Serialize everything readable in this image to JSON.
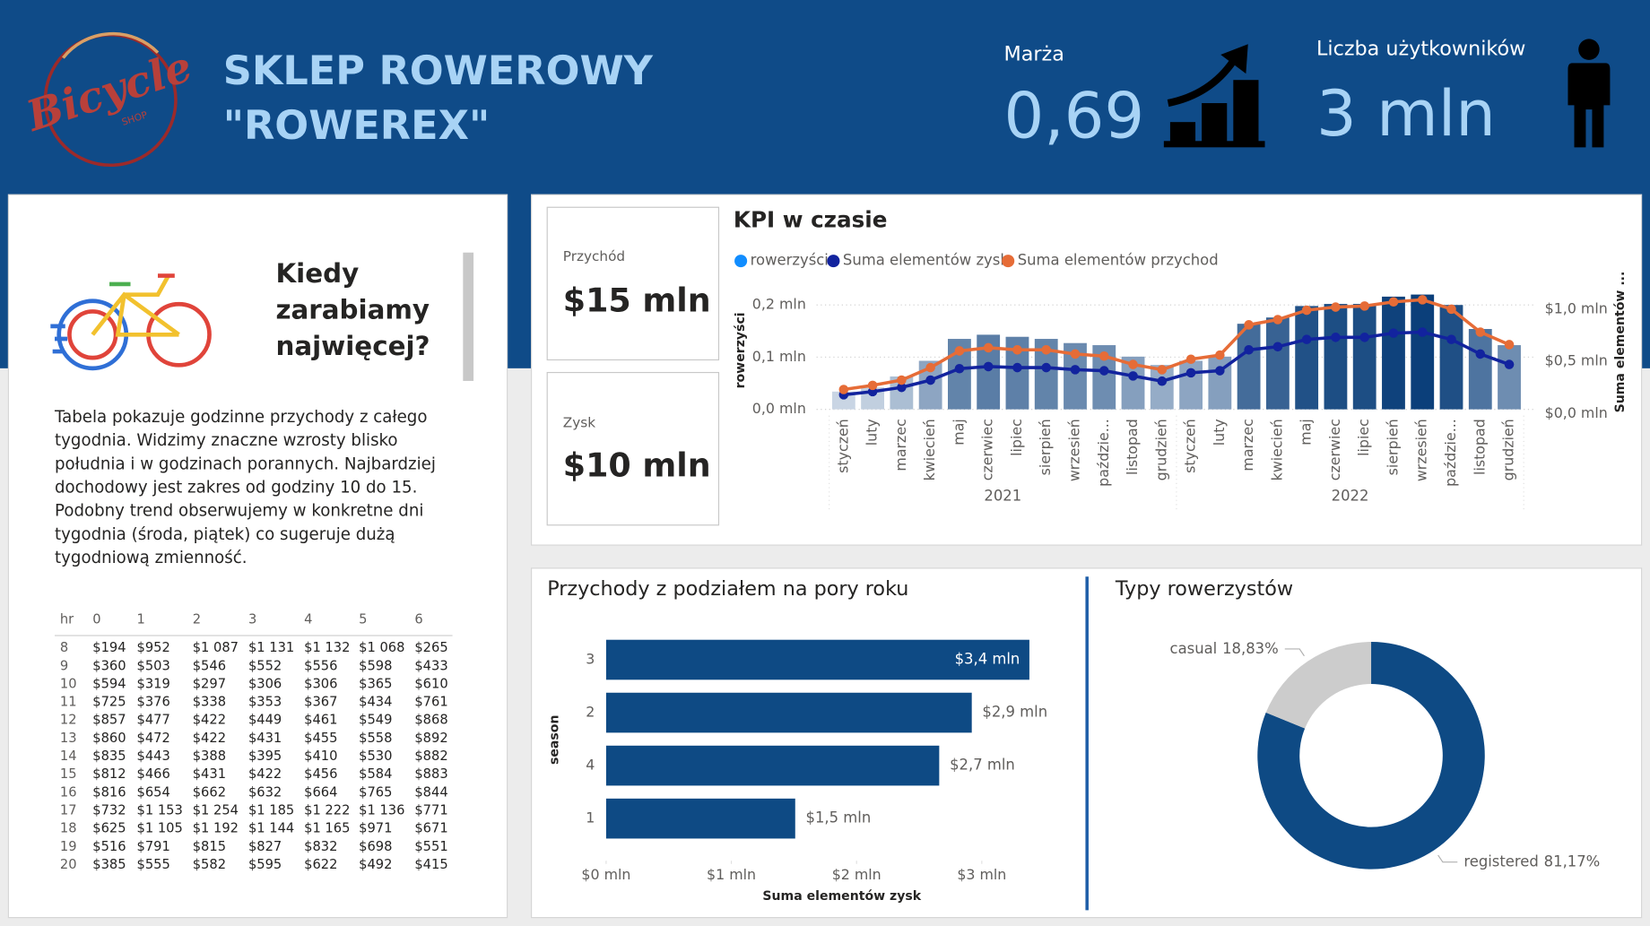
{
  "header": {
    "logo": "Bicycle",
    "logo_sub": "SHOP",
    "title": [
      "SKLEP ROWEROWY",
      "\"ROWEREX\""
    ],
    "kpis": [
      {
        "label": "Marża",
        "value": "0,69"
      },
      {
        "label": "Liczba użytkowników",
        "value": "3 mln"
      }
    ]
  },
  "info": {
    "heading": [
      "Kiedy",
      "zarabiamy",
      "najwięcej?"
    ],
    "text": [
      "Tabela pokazuje godzinne przychody z całego",
      "tygodnia. Widzimy znaczne wzrosty blisko",
      "południa i w godzinach porannych. Najbardziej",
      "dochodowy jest zakres od godziny 10 do 15.",
      "Podobny trend obserwujemy w konkretne dni",
      "tygodnia (środa, piątek) co sugeruje dużą",
      "tygodniową zmienność."
    ]
  },
  "table": {
    "columns": [
      "hr",
      "0",
      "1",
      "2",
      "3",
      "4",
      "5",
      "6"
    ],
    "rows": [
      [
        "8",
        "$194",
        "$952",
        "$1 087",
        "$1 131",
        "$1 132",
        "$1 068",
        "$265"
      ],
      [
        "9",
        "$360",
        "$503",
        "$546",
        "$552",
        "$556",
        "$598",
        "$433"
      ],
      [
        "10",
        "$594",
        "$319",
        "$297",
        "$306",
        "$306",
        "$365",
        "$610"
      ],
      [
        "11",
        "$725",
        "$376",
        "$338",
        "$353",
        "$367",
        "$434",
        "$761"
      ],
      [
        "12",
        "$857",
        "$477",
        "$422",
        "$449",
        "$461",
        "$549",
        "$868"
      ],
      [
        "13",
        "$860",
        "$472",
        "$422",
        "$431",
        "$455",
        "$558",
        "$892"
      ],
      [
        "14",
        "$835",
        "$443",
        "$388",
        "$395",
        "$410",
        "$530",
        "$882"
      ],
      [
        "15",
        "$812",
        "$466",
        "$431",
        "$422",
        "$456",
        "$584",
        "$883"
      ],
      [
        "16",
        "$816",
        "$654",
        "$662",
        "$632",
        "$664",
        "$765",
        "$844"
      ],
      [
        "17",
        "$732",
        "$1 153",
        "$1 254",
        "$1 185",
        "$1 222",
        "$1 136",
        "$771"
      ],
      [
        "18",
        "$625",
        "$1 105",
        "$1 192",
        "$1 144",
        "$1 165",
        "$971",
        "$671"
      ],
      [
        "19",
        "$516",
        "$791",
        "$815",
        "$827",
        "$832",
        "$698",
        "$551"
      ],
      [
        "20",
        "$385",
        "$555",
        "$582",
        "$595",
        "$622",
        "$492",
        "$415"
      ]
    ]
  },
  "cards": [
    {
      "label": "Przychód",
      "value": "$15 mln"
    },
    {
      "label": "Zysk",
      "value": "$10 mln"
    }
  ],
  "chart_data": [
    {
      "type": "combo",
      "title": "KPI w czasie",
      "categories": [
        "styczeń",
        "luty",
        "marzec",
        "kwiecień",
        "maj",
        "czerwiec",
        "lipiec",
        "sierpień",
        "wrzesień",
        "paździe...",
        "listopad",
        "grudzień",
        "styczeń",
        "luty",
        "marzec",
        "kwiecień",
        "maj",
        "czerwiec",
        "lipiec",
        "sierpień",
        "wrzesień",
        "paździe...",
        "listopad",
        "grudzień"
      ],
      "groups": [
        "2021",
        "2022"
      ],
      "ylabel": "rowerzyści",
      "y2label": "Suma elementów ...",
      "ylim": [
        0,
        240000
      ],
      "yticks": [
        {
          "value": 0,
          "label": "0,0 mln"
        },
        {
          "value": 100000,
          "label": "0,1 mln"
        },
        {
          "value": 200000,
          "label": "0,2 mln"
        }
      ],
      "y2lim": [
        0,
        1200000
      ],
      "y2ticks": [
        {
          "value": 0,
          "label": "$0,0 mln"
        },
        {
          "value": 500000,
          "label": "$0,5 mln"
        },
        {
          "value": 1000000,
          "label": "$1,0 mln"
        }
      ],
      "grid": true,
      "legend": "top-left",
      "series": [
        {
          "name": "rowerzyści",
          "kind": "bar",
          "color": "#118dff",
          "color_scale": [
            "#c9d5e4",
            "#0b3f7a"
          ],
          "values": [
            34000,
            42000,
            63000,
            93000,
            135000,
            143000,
            139000,
            135000,
            127000,
            123000,
            101000,
            85000,
            93000,
            101000,
            164000,
            176000,
            198000,
            202000,
            202000,
            216000,
            220000,
            200000,
            154000,
            123000
          ]
        },
        {
          "name": "Suma elementów zysk",
          "kind": "line",
          "axis": "y2",
          "color": "#12239e",
          "values": [
            140000,
            170000,
            210000,
            280000,
            390000,
            410000,
            400000,
            400000,
            380000,
            370000,
            320000,
            270000,
            350000,
            370000,
            570000,
            600000,
            670000,
            690000,
            690000,
            730000,
            740000,
            670000,
            530000,
            430000
          ]
        },
        {
          "name": "Suma elementów przychod",
          "kind": "line",
          "axis": "y2",
          "color": "#e66c37",
          "values": [
            190000,
            230000,
            280000,
            400000,
            560000,
            590000,
            570000,
            570000,
            530000,
            510000,
            430000,
            380000,
            480000,
            520000,
            810000,
            860000,
            950000,
            980000,
            990000,
            1030000,
            1050000,
            960000,
            740000,
            620000
          ]
        }
      ]
    },
    {
      "type": "hbar",
      "title": "Przychody z podziałem na pory roku",
      "categories": [
        "3",
        "2",
        "4",
        "1"
      ],
      "values": [
        3380000,
        2920000,
        2660000,
        1510000
      ],
      "value_labels": [
        "$3,4 mln",
        "$2,9 mln",
        "$2,7 mln",
        "$1,5 mln"
      ],
      "color": "#0e4a84",
      "xlim": [
        0,
        3500000
      ],
      "xticks": [
        {
          "value": 0,
          "label": "$0 mln"
        },
        {
          "value": 1000000,
          "label": "$1 mln"
        },
        {
          "value": 2000000,
          "label": "$2 mln"
        },
        {
          "value": 3000000,
          "label": "$3 mln"
        }
      ],
      "xlabel": "Suma elementów zysk",
      "ylabel": "season"
    },
    {
      "type": "donut",
      "title": "Typy rowerzystów",
      "categories": [
        "registered",
        "casual"
      ],
      "values": [
        81.17,
        18.83
      ],
      "value_labels": [
        "81,17%",
        "18,83%"
      ],
      "colors": [
        "#0e4a84",
        "#cccccc"
      ]
    }
  ]
}
